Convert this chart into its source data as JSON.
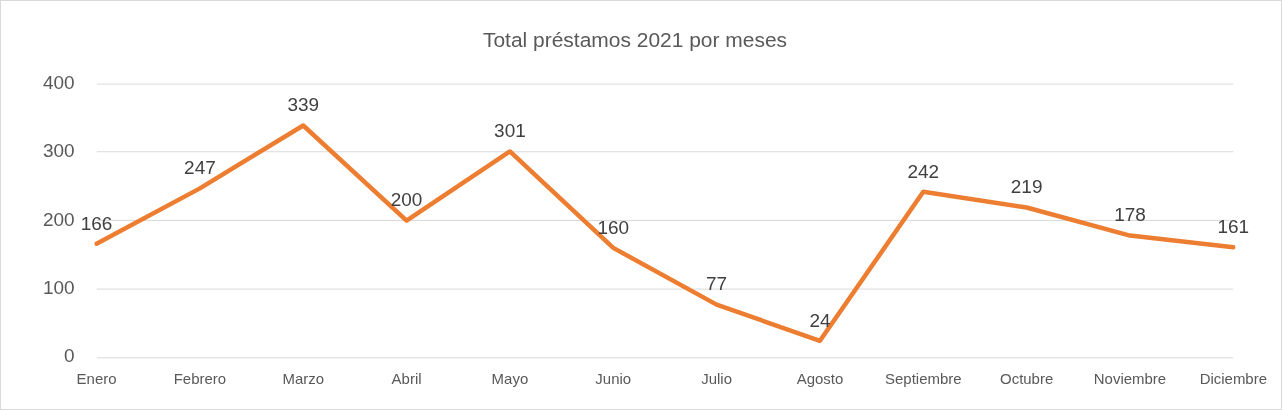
{
  "chart_data": {
    "type": "line",
    "title": "Total préstamos 2021 por meses",
    "categories": [
      "Enero",
      "Febrero",
      "Marzo",
      "Abril",
      "Mayo",
      "Junio",
      "Julio",
      "Agosto",
      "Septiembre",
      "Octubre",
      "Noviembre",
      "Diciembre"
    ],
    "values": [
      166,
      247,
      339,
      200,
      301,
      160,
      77,
      24,
      242,
      219,
      178,
      161
    ],
    "color": "#ed7d31",
    "ylim": [
      0,
      400
    ],
    "yticks": [
      0,
      100,
      200,
      300,
      400
    ],
    "grid": "y",
    "data_labels": true,
    "marker": "none"
  }
}
